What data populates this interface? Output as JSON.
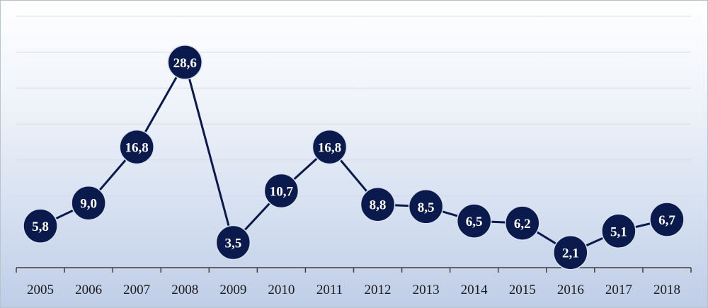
{
  "chart_data": {
    "type": "line",
    "title": "",
    "xlabel": "",
    "ylabel": "",
    "categories": [
      "2005",
      "2006",
      "2007",
      "2008",
      "2009",
      "2010",
      "2011",
      "2012",
      "2013",
      "2014",
      "2015",
      "2016",
      "2017",
      "2018"
    ],
    "series": [
      {
        "values": [
          5.8,
          9.0,
          16.8,
          28.6,
          3.5,
          10.7,
          16.8,
          8.8,
          8.5,
          6.5,
          6.2,
          2.1,
          5.1,
          6.7
        ],
        "labels": [
          "5,8",
          "9,0",
          "16,8",
          "28,6",
          "3,5",
          "10,7",
          "16,8",
          "8,8",
          "8,5",
          "6,5",
          "6,2",
          "2,1",
          "5,1",
          "6,7"
        ]
      }
    ],
    "ylim": [
      0,
      35
    ],
    "grid": true,
    "legend": "none",
    "colors": {
      "line": "#0b1a4d",
      "marker": "#0b1a4d",
      "label": "#ffffff",
      "grid": "#d6dce6"
    }
  }
}
